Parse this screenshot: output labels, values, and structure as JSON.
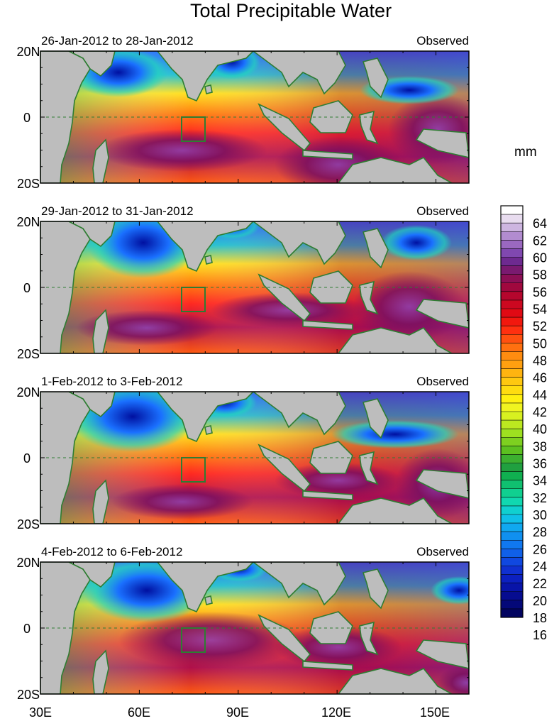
{
  "title": "Total Precipitable Water",
  "colorbar": {
    "unit": "mm",
    "labels": [
      "64",
      "62",
      "60",
      "58",
      "56",
      "54",
      "52",
      "50",
      "48",
      "46",
      "44",
      "42",
      "40",
      "38",
      "36",
      "34",
      "32",
      "30",
      "28",
      "26",
      "24",
      "22",
      "20",
      "18",
      "16"
    ]
  },
  "x_axis": {
    "ticks": [
      "30E",
      "60E",
      "90E",
      "120E",
      "150E"
    ]
  },
  "y_axis": {
    "ticks": [
      "20N",
      "0",
      "20S"
    ]
  },
  "panels": [
    {
      "period": "26-Jan-2012 to 28-Jan-2012",
      "label": "Observed"
    },
    {
      "period": "29-Jan-2012 to 31-Jan-2012",
      "label": "Observed"
    },
    {
      "period": "1-Feb-2012 to 3-Feb-2012",
      "label": "Observed"
    },
    {
      "period": "4-Feb-2012 to 6-Feb-2012",
      "label": "Observed"
    }
  ],
  "colors": {
    "land": "#bdbdbd",
    "coast": "#2e7d32",
    "water_high": "#6a1b6a",
    "water_mid": "#ff2020",
    "water_low": "#0a20c8"
  }
}
